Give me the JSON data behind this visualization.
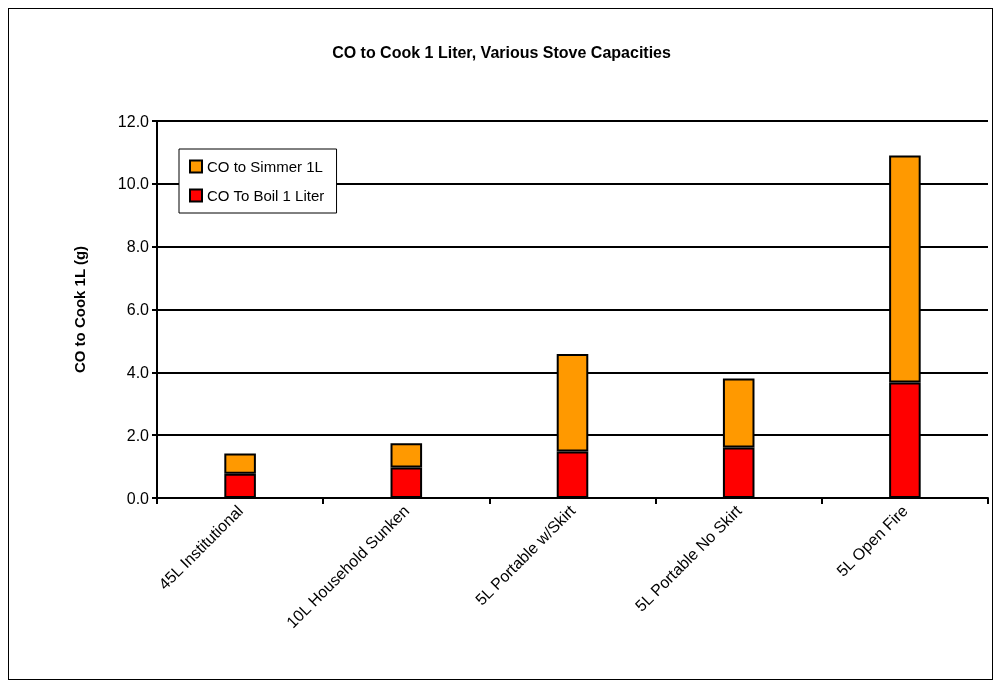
{
  "chart_data": {
    "type": "bar",
    "title": "CO to Cook 1 Liter, Various Stove Capacities",
    "ylabel": "CO to Cook 1L (g)",
    "categories": [
      "45L Institutional",
      "10L Household Sunken",
      "5L Portable w/Skirt",
      "5L Portable No Skirt",
      "5L Open Fire"
    ],
    "stacked": true,
    "series": [
      {
        "name": "CO To Boil 1 Liter",
        "color": "#ff0000",
        "values": [
          0.77,
          0.97,
          1.48,
          1.61,
          3.68
        ]
      },
      {
        "name": "CO to Simmer 1L",
        "color": "#ff9900",
        "values": [
          0.65,
          0.77,
          3.1,
          2.19,
          7.22
        ]
      }
    ],
    "ylim": [
      0,
      12
    ],
    "yticks": [
      {
        "value": 0,
        "label": "0.0"
      },
      {
        "value": 2,
        "label": "2.0"
      },
      {
        "value": 4,
        "label": "4.0"
      },
      {
        "value": 6,
        "label": "6.0"
      },
      {
        "value": 8,
        "label": "8.0"
      },
      {
        "value": 10,
        "label": "10.0"
      },
      {
        "value": 12,
        "label": "12.0"
      }
    ],
    "grid": "y",
    "legend": "top left"
  }
}
